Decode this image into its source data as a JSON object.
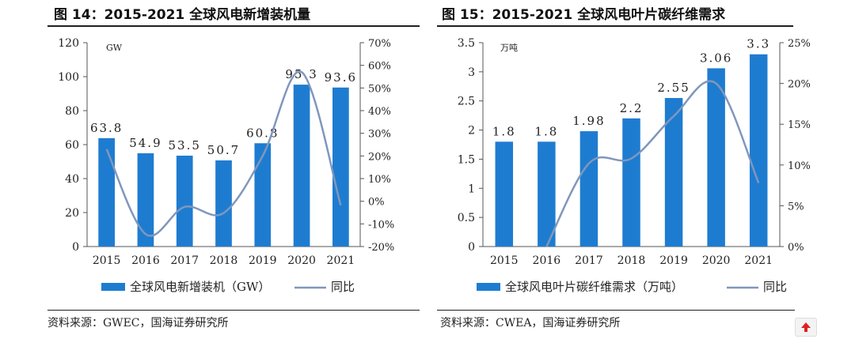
{
  "left": {
    "title": "图 14：2015-2021 全球风电新增装机量",
    "source": "资料来源：GWEC，国海证券研究所"
  },
  "right": {
    "title": "图 15：2015-2021 全球风电叶片碳纤维需求",
    "source": "资料来源：CWEA，国海证券研究所"
  },
  "colors": {
    "bar": "#1e7cd0",
    "line": "#7f97bd",
    "axis": "#555555"
  },
  "icons": {
    "scroll_top": "up-arrow-icon"
  },
  "chart_data": [
    {
      "type": "bar",
      "title": "图 14：2015-2021 全球风电新增装机量",
      "unit_label": "GW",
      "categories": [
        "2015",
        "2016",
        "2017",
        "2018",
        "2019",
        "2020",
        "2021"
      ],
      "series": [
        {
          "name": "全球风电新增装机（GW）",
          "type": "bar",
          "axis": "left",
          "values": [
            63.8,
            54.9,
            53.5,
            50.7,
            60.8,
            95.3,
            93.6
          ],
          "labels": [
            "63.8",
            "54.9",
            "53.5",
            "50.7",
            "60.8",
            "95.3",
            "93.6"
          ]
        },
        {
          "name": "同比",
          "type": "line",
          "axis": "right",
          "values": [
            23,
            -14.5,
            -2.5,
            -5.2,
            20,
            57,
            -1.8
          ]
        }
      ],
      "ylim_left": [
        0,
        120
      ],
      "yticks_left": [
        "0",
        "20",
        "40",
        "60",
        "80",
        "100",
        "120"
      ],
      "ylim_right": [
        -20,
        70
      ],
      "yticks_right": [
        "-20%",
        "-10%",
        "0%",
        "10%",
        "20%",
        "30%",
        "40%",
        "50%",
        "60%",
        "70%"
      ],
      "legend_position": "bottom"
    },
    {
      "type": "bar",
      "title": "图 15：2015-2021 全球风电叶片碳纤维需求",
      "unit_label": "万吨",
      "categories": [
        "2015",
        "2016",
        "2017",
        "2018",
        "2019",
        "2020",
        "2021"
      ],
      "series": [
        {
          "name": "全球风电叶片碳纤维需求（万吨）",
          "type": "bar",
          "axis": "left",
          "values": [
            1.8,
            1.8,
            1.98,
            2.2,
            2.55,
            3.06,
            3.3
          ],
          "labels": [
            "1.8",
            "1.8",
            "1.98",
            "2.2",
            "2.55",
            "3.06",
            "3.3"
          ]
        },
        {
          "name": "同比",
          "type": "line",
          "axis": "right",
          "values": [
            null,
            0,
            10.2,
            10.8,
            16,
            20,
            7.8
          ]
        }
      ],
      "ylim_left": [
        0,
        3.5
      ],
      "yticks_left": [
        "0",
        "0.5",
        "1",
        "1.5",
        "2",
        "2.5",
        "3",
        "3.5"
      ],
      "ylim_right": [
        0,
        25
      ],
      "yticks_right": [
        "0%",
        "5%",
        "10%",
        "15%",
        "20%",
        "25%"
      ],
      "legend_position": "bottom"
    }
  ]
}
